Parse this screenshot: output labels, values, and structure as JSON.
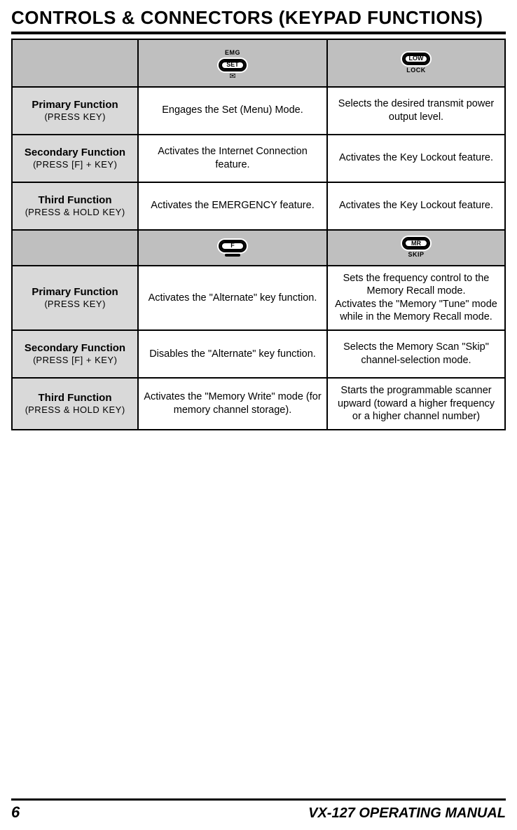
{
  "page": {
    "title_main": "CONTROLS & CONNECTORS",
    "title_paren": "(KEYPAD FUNCTIONS)",
    "page_number": "6",
    "manual_name_prefix": "VX-127 ",
    "manual_name_sc": "OPERATING MANUAL"
  },
  "row_labels": {
    "primary": {
      "title": "Primary Function",
      "sub_open": "(",
      "sub_sc": "PRESS KEY",
      "sub_close": ")"
    },
    "secondary": {
      "title": "Secondary Function",
      "sub_open": "(",
      "sub_sc": "PRESS [F] + KEY",
      "sub_close": ")"
    },
    "third": {
      "title": "Third Function",
      "sub_open": "(",
      "sub_sc": "PRESS & HOLD KEY",
      "sub_close": ")"
    }
  },
  "keys": {
    "set": {
      "top": "EMG",
      "main": "SET",
      "bottom_glyph": "✉"
    },
    "low": {
      "main": "LOW",
      "bottom": "LOCK"
    },
    "f": {
      "main": "F"
    },
    "mr": {
      "main": "MR",
      "bottom": "SKIP"
    }
  },
  "block1": {
    "col2": {
      "primary": "Engages the Set (Menu) Mode.",
      "secondary": "Activates the Internet Connection feature.",
      "third": "Activates the EMERGENCY feature."
    },
    "col3": {
      "primary": "Selects the desired transmit power output level.",
      "secondary": "Activates the Key Lockout feature.",
      "third": "Activates the Key Lockout feature."
    }
  },
  "block2": {
    "col2": {
      "primary": "Activates the \"Alternate\" key function.",
      "secondary": "Disables the \"Alternate\" key function.",
      "third": "Activates the \"Memory Write\" mode (for memory channel storage)."
    },
    "col3": {
      "primary_line1": "Sets the frequency control to the Memory Recall mode.",
      "primary_line2": "Activates the \"Memory \"Tune\" mode while in the Memory Recall mode.",
      "secondary": "Selects the Memory Scan \"Skip\" channel-selection mode.",
      "third": "Starts the programmable scanner upward (toward a higher frequency or a higher channel number)"
    }
  },
  "colors": {
    "header_bg": "#bfbfbf",
    "label_bg": "#d9d9d9",
    "content_bg": "#ffffff",
    "border": "#000000"
  }
}
